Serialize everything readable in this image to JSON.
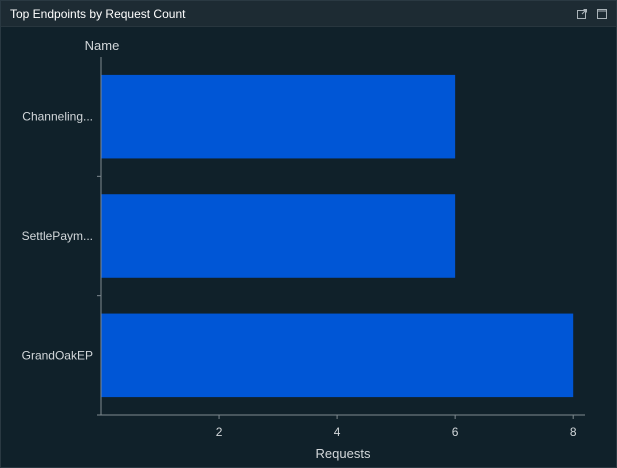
{
  "widget": {
    "title": "Top Endpoints by Request Count",
    "actions": [
      {
        "icon": "open-external-icon"
      },
      {
        "icon": "maximize-icon"
      }
    ]
  },
  "colors": {
    "background": "#10212a",
    "header": "#1d2b33",
    "bar": "#0056d6",
    "axis": "#7f8a90",
    "text": "#d2d7da"
  },
  "chart_data": {
    "type": "bar",
    "orientation": "horizontal",
    "categories": [
      "Channeling...",
      "SettlePaym...",
      "GrandOakEP"
    ],
    "values": [
      6,
      6,
      8
    ],
    "xlabel": "Requests",
    "ylabel": "Name",
    "xticks": [
      2,
      4,
      6,
      8
    ],
    "xlim": [
      0,
      8.2
    ],
    "grid": false,
    "legend": "none"
  }
}
